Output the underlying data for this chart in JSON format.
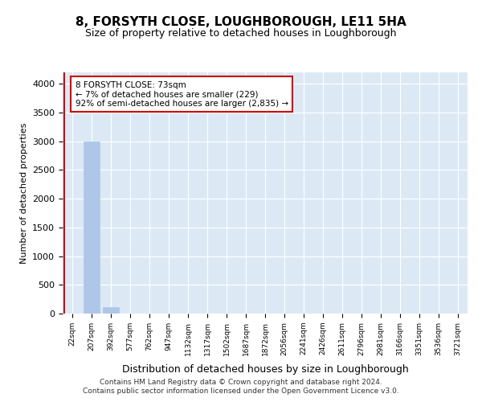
{
  "title": "8, FORSYTH CLOSE, LOUGHBOROUGH, LE11 5HA",
  "subtitle": "Size of property relative to detached houses in Loughborough",
  "xlabel": "Distribution of detached houses by size in Loughborough",
  "ylabel": "Number of detached properties",
  "bin_labels": [
    "22sqm",
    "207sqm",
    "392sqm",
    "577sqm",
    "762sqm",
    "947sqm",
    "1132sqm",
    "1317sqm",
    "1502sqm",
    "1687sqm",
    "1872sqm",
    "2056sqm",
    "2241sqm",
    "2426sqm",
    "2611sqm",
    "2796sqm",
    "2981sqm",
    "3166sqm",
    "3351sqm",
    "3536sqm",
    "3721sqm"
  ],
  "bar_values": [
    3,
    2990,
    110,
    5,
    2,
    1,
    1,
    0,
    0,
    0,
    0,
    0,
    0,
    0,
    0,
    0,
    0,
    0,
    0,
    0,
    0
  ],
  "bar_color": "#aec6e8",
  "ylim": [
    0,
    4200
  ],
  "yticks": [
    0,
    500,
    1000,
    1500,
    2000,
    2500,
    3000,
    3500,
    4000
  ],
  "annotation_line1": "8 FORSYTH CLOSE: 73sqm",
  "annotation_line2": "← 7% of detached houses are smaller (229)",
  "annotation_line3": "92% of semi-detached houses are larger (2,835) →",
  "annotation_box_facecolor": "#ffffff",
  "annotation_box_edgecolor": "#cc0000",
  "vline_color": "#cc0000",
  "bg_color": "#dce9f5",
  "grid_color": "#ffffff",
  "footer_line1": "Contains HM Land Registry data © Crown copyright and database right 2024.",
  "footer_line2": "Contains public sector information licensed under the Open Government Licence v3.0."
}
